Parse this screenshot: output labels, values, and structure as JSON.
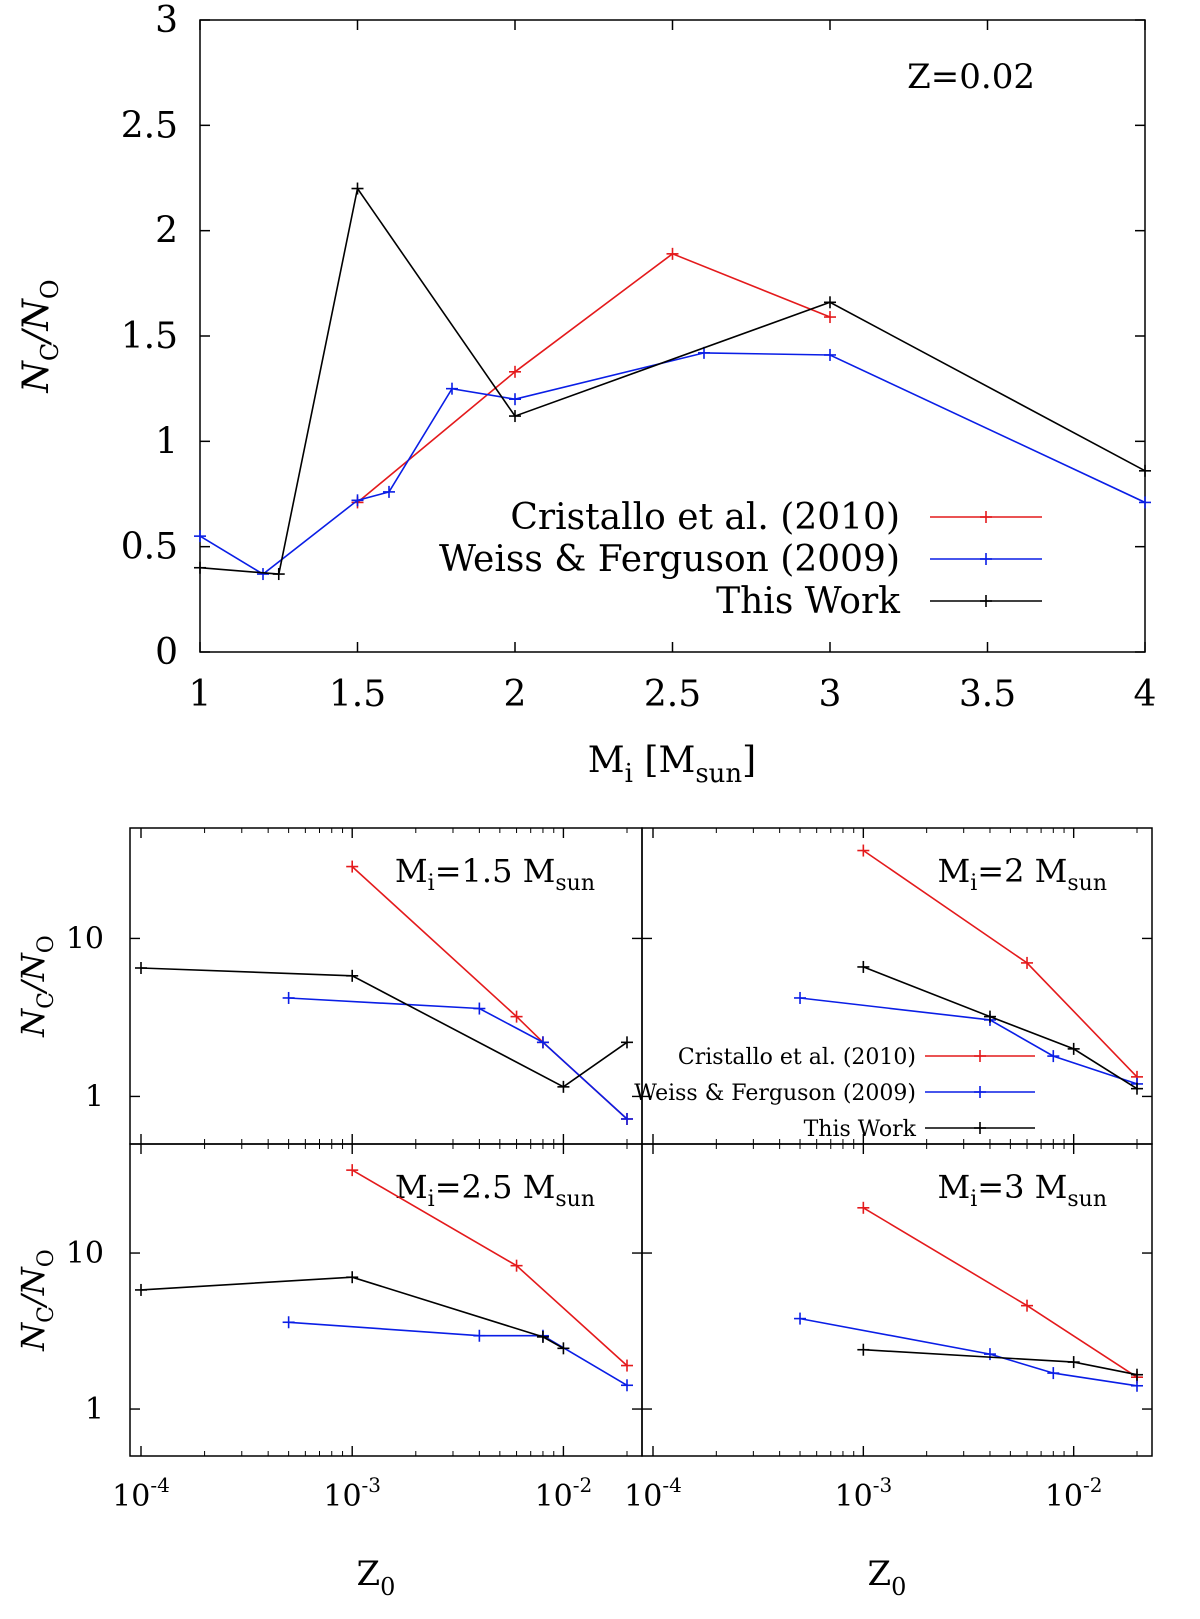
{
  "colors": {
    "cristallo": "#e41a1c",
    "weiss": "#0a1ee6",
    "this_work": "#000000"
  },
  "legend": [
    {
      "key": "cristallo",
      "label": "Cristallo et al. (2010)"
    },
    {
      "key": "weiss",
      "label": "Weiss & Ferguson (2009)"
    },
    {
      "key": "this_work",
      "label": "This Work"
    }
  ],
  "chart_data": [
    {
      "id": "top",
      "type": "line",
      "annotation": "Z=0.02",
      "ylabel": {
        "main": "N",
        "sub1": "C",
        "slash": "/N",
        "sub2": "O"
      },
      "xlabel": {
        "main": "M",
        "sub1": "i",
        "mid": " [M",
        "sub2": "sun",
        "end": "]"
      },
      "xlim": [
        1,
        4
      ],
      "ylim": [
        0,
        3
      ],
      "xticks": [
        "1",
        "1.5",
        "2",
        "2.5",
        "3",
        "3.5",
        "4"
      ],
      "yticks": [
        "0",
        "0.5",
        "1",
        "1.5",
        "2",
        "2.5",
        "3"
      ],
      "series": [
        {
          "key": "cristallo",
          "x": [
            1.5,
            2.0,
            2.5,
            3.0
          ],
          "y": [
            0.71,
            1.33,
            1.89,
            1.59
          ]
        },
        {
          "key": "weiss",
          "x": [
            1.0,
            1.2,
            1.5,
            1.6,
            1.8,
            2.0,
            2.6,
            3.0,
            4.0
          ],
          "y": [
            0.55,
            0.37,
            0.72,
            0.76,
            1.25,
            1.2,
            1.42,
            1.41,
            0.71
          ]
        },
        {
          "key": "this_work",
          "x": [
            1.0,
            1.25,
            1.5,
            2.0,
            3.0,
            4.0
          ],
          "y": [
            0.4,
            0.37,
            2.2,
            1.12,
            1.66,
            0.86
          ]
        }
      ]
    },
    {
      "id": "p15",
      "type": "line",
      "scale": "log-log",
      "title": {
        "main": "M",
        "sub1": "i",
        "mid": "=1.5 M",
        "sub2": "sun"
      },
      "xlim": [
        0.0001,
        0.02
      ],
      "ylim": [
        0.5,
        50
      ],
      "series": [
        {
          "key": "cristallo",
          "x": [
            0.001,
            0.006,
            0.008,
            0.02
          ],
          "y": [
            28.5,
            3.2,
            2.2,
            0.72
          ]
        },
        {
          "key": "weiss",
          "x": [
            0.0005,
            0.004,
            0.008,
            0.02
          ],
          "y": [
            4.2,
            3.6,
            2.2,
            0.72
          ]
        },
        {
          "key": "this_work",
          "x": [
            0.0001,
            0.001,
            0.01,
            0.02
          ],
          "y": [
            6.5,
            5.8,
            1.15,
            2.2
          ]
        }
      ]
    },
    {
      "id": "p2",
      "type": "line",
      "scale": "log-log",
      "title": {
        "main": "M",
        "sub1": "i",
        "mid": "=2 M",
        "sub2": "sun"
      },
      "xlim": [
        0.0001,
        0.02
      ],
      "ylim": [
        0.5,
        50
      ],
      "series": [
        {
          "key": "cristallo",
          "x": [
            0.001,
            0.006,
            0.02
          ],
          "y": [
            36,
            7.0,
            1.33
          ]
        },
        {
          "key": "weiss",
          "x": [
            0.0005,
            0.004,
            0.008,
            0.02
          ],
          "y": [
            4.2,
            3.05,
            1.8,
            1.2
          ]
        },
        {
          "key": "this_work",
          "x": [
            0.001,
            0.004,
            0.01,
            0.02
          ],
          "y": [
            6.6,
            3.2,
            2.0,
            1.12
          ]
        }
      ]
    },
    {
      "id": "p25",
      "type": "line",
      "scale": "log-log",
      "title": {
        "main": "M",
        "sub1": "i",
        "mid": "=2.5 M",
        "sub2": "sun"
      },
      "xlim": [
        0.0001,
        0.02
      ],
      "ylim": [
        0.5,
        50
      ],
      "series": [
        {
          "key": "cristallo",
          "x": [
            0.001,
            0.006,
            0.02
          ],
          "y": [
            34,
            8.3,
            1.9
          ]
        },
        {
          "key": "weiss",
          "x": [
            0.0005,
            0.004,
            0.008,
            0.02
          ],
          "y": [
            3.6,
            2.95,
            2.95,
            1.42
          ]
        },
        {
          "key": "this_work",
          "x": [
            0.0001,
            0.001,
            0.008,
            0.01
          ],
          "y": [
            5.8,
            7.0,
            2.9,
            2.45
          ]
        }
      ]
    },
    {
      "id": "p3",
      "type": "line",
      "scale": "log-log",
      "title": {
        "main": "M",
        "sub1": "i",
        "mid": "=3 M",
        "sub2": "sun"
      },
      "xlim": [
        0.0001,
        0.02
      ],
      "ylim": [
        0.5,
        50
      ],
      "series": [
        {
          "key": "cristallo",
          "x": [
            0.001,
            0.006,
            0.02
          ],
          "y": [
            19.5,
            4.6,
            1.6
          ]
        },
        {
          "key": "weiss",
          "x": [
            0.0005,
            0.004,
            0.008,
            0.02
          ],
          "y": [
            3.8,
            2.25,
            1.7,
            1.41
          ]
        },
        {
          "key": "this_work",
          "x": [
            0.001,
            0.01,
            0.02
          ],
          "y": [
            2.4,
            2.0,
            1.66
          ]
        }
      ]
    }
  ],
  "bottom_axes": {
    "xlabel": {
      "main": "Z",
      "sub": "0"
    },
    "ylabel": {
      "main": "N",
      "sub1": "C",
      "slash": "/N",
      "sub2": "O"
    },
    "xticks": [
      {
        "base": "10",
        "exp": "-4"
      },
      {
        "base": "10",
        "exp": "-3"
      },
      {
        "base": "10",
        "exp": "-2"
      }
    ],
    "yticks": [
      "1",
      "10"
    ]
  }
}
